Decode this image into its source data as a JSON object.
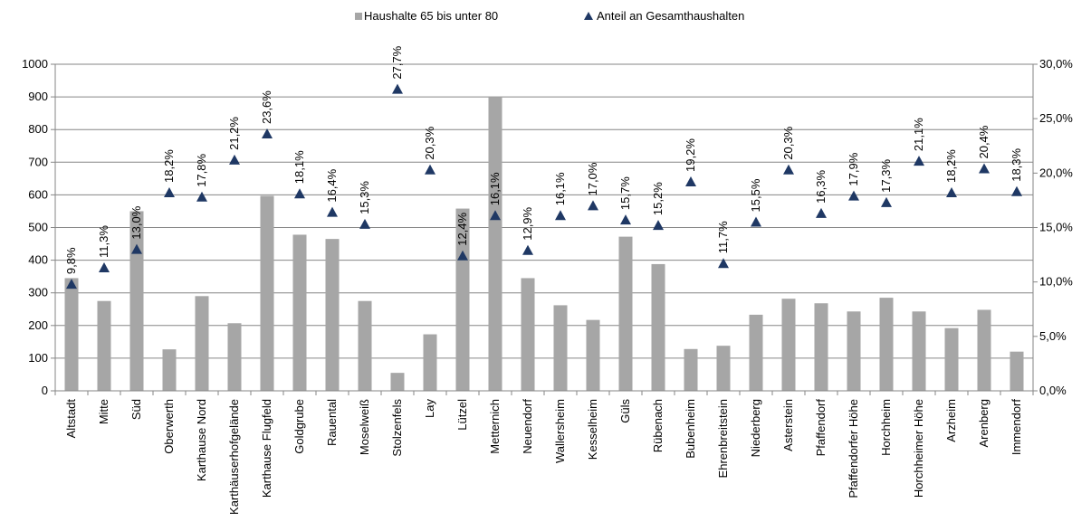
{
  "chart_data": {
    "type": "bar",
    "categories": [
      "Altstadt",
      "Mitte",
      "Süd",
      "Oberwerth",
      "Karthause Nord",
      "Karthäuserhofgelände",
      "Karthause Flugfeld",
      "Goldgrube",
      "Rauental",
      "Moselweiß",
      "Stolzenfels",
      "Lay",
      "Lützel",
      "Metternich",
      "Neuendorf",
      "Wallersheim",
      "Kesselheim",
      "Güls",
      "Rübenach",
      "Bubenheim",
      "Ehrenbreitstein",
      "Niederberg",
      "Asterstein",
      "Pfaffendorf",
      "Pfaffendorfer Höhe",
      "Horchheim",
      "Horchheimer Höhe",
      "Arzheim",
      "Arenberg",
      "Immendorf"
    ],
    "series": [
      {
        "name": "Haushalte 65 bis unter 80",
        "kind": "bar",
        "axis": "left",
        "color": "#a6a6a6",
        "values": [
          345,
          275,
          550,
          127,
          290,
          207,
          597,
          478,
          465,
          275,
          55,
          173,
          558,
          900,
          345,
          262,
          217,
          472,
          388,
          128,
          138,
          233,
          282,
          268,
          243,
          285,
          243,
          192,
          248,
          120
        ]
      },
      {
        "name": "Anteil an Gesamthaushalten",
        "kind": "marker",
        "axis": "right",
        "color": "#1f3864",
        "values": [
          9.8,
          11.3,
          13.0,
          18.2,
          17.8,
          21.2,
          23.6,
          18.1,
          16.4,
          15.3,
          27.7,
          20.3,
          12.4,
          16.1,
          12.9,
          16.1,
          17.0,
          15.7,
          15.2,
          19.2,
          11.7,
          15.5,
          20.3,
          16.3,
          17.9,
          17.3,
          21.1,
          18.2,
          20.4,
          18.3
        ],
        "labels": [
          "9,8%",
          "11,3%",
          "13,0%",
          "18,2%",
          "17,8%",
          "21,2%",
          "23,6%",
          "18,1%",
          "16,4%",
          "15,3%",
          "27,7%",
          "20,3%",
          "12,4%",
          "16,1%",
          "12,9%",
          "16,1%",
          "17,0%",
          "15,7%",
          "15,2%",
          "19,2%",
          "11,7%",
          "15,5%",
          "20,3%",
          "16,3%",
          "17,9%",
          "17,3%",
          "21,1%",
          "18,2%",
          "20,4%",
          "18,3%"
        ]
      }
    ],
    "y_left": {
      "min": 0,
      "max": 1000,
      "ticks": [
        "0",
        "100",
        "200",
        "300",
        "400",
        "500",
        "600",
        "700",
        "800",
        "900",
        "1000"
      ]
    },
    "y_right": {
      "min": 0,
      "max": 30,
      "ticks": [
        "0,0%",
        "5,0%",
        "10,0%",
        "15,0%",
        "20,0%",
        "25,0%",
        "30,0%"
      ]
    },
    "grid": true,
    "legend_position": "top"
  }
}
